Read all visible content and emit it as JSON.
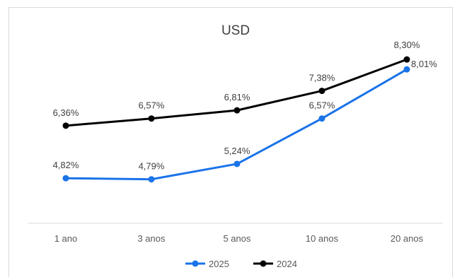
{
  "chart_data": {
    "type": "line",
    "title": "USD",
    "categories": [
      "1 ano",
      "3 anos",
      "5 anos",
      "10 anos",
      "20 anos"
    ],
    "series": [
      {
        "name": "2025",
        "values": [
          4.82,
          4.79,
          5.24,
          6.57,
          8.01
        ],
        "labels": [
          "4,82%",
          "4,79%",
          "5,24%",
          "6,57%",
          "8,01%"
        ],
        "color": "#1a73e8"
      },
      {
        "name": "2024",
        "values": [
          6.36,
          6.57,
          6.81,
          7.38,
          8.3
        ],
        "labels": [
          "6,36%",
          "6,57%",
          "6,81%",
          "7,38%",
          "8,30%"
        ],
        "color": "#000000"
      }
    ],
    "xlabel": "",
    "ylabel": "",
    "ylim": [
      3.5,
      8.8
    ],
    "grid": false,
    "legend_position": "bottom"
  }
}
